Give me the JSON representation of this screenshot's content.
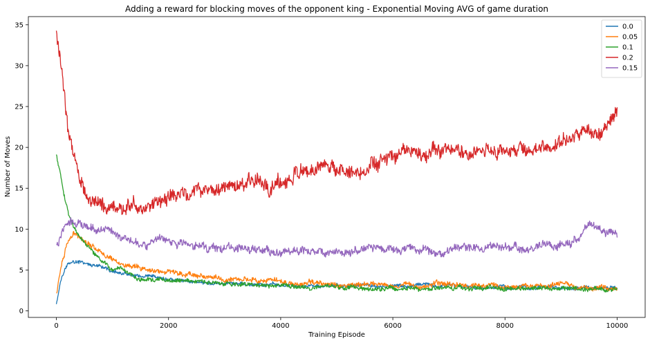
{
  "chart_data": {
    "type": "line",
    "title": "Adding a reward for blocking moves of the opponent king - Exponential Moving AVG of game duration",
    "xlabel": "Training Episode",
    "ylabel": "Number of Moves",
    "xlim": [
      -500,
      10500
    ],
    "ylim": [
      -0.8,
      36
    ],
    "xticks": [
      0,
      2000,
      4000,
      6000,
      8000,
      10000
    ],
    "yticks": [
      0,
      5,
      10,
      15,
      20,
      25,
      30,
      35
    ],
    "grid": false,
    "legend": "top-right",
    "series": [
      {
        "name": "0.0",
        "color": "#1f77b4",
        "noise": 0.25,
        "x": [
          0,
          50,
          100,
          200,
          300,
          500,
          700,
          1000,
          1500,
          2000,
          3000,
          4000,
          5000,
          6000,
          7000,
          8000,
          9000,
          10000
        ],
        "y": [
          1.0,
          2.8,
          4.5,
          5.8,
          6.0,
          5.8,
          5.4,
          4.8,
          4.0,
          3.8,
          3.3,
          3.1,
          3.0,
          3.0,
          3.0,
          2.9,
          2.8,
          2.8
        ]
      },
      {
        "name": "0.05",
        "color": "#ff7f0e",
        "noise": 0.35,
        "x": [
          0,
          50,
          100,
          200,
          300,
          400,
          600,
          800,
          1000,
          1500,
          2000,
          2500,
          3000,
          3500,
          4000,
          5000,
          6000,
          7000,
          8000,
          9000,
          10000
        ],
        "y": [
          2.0,
          4.0,
          6.0,
          8.5,
          9.3,
          9.2,
          8.3,
          7.3,
          6.3,
          4.9,
          4.7,
          4.5,
          3.8,
          3.9,
          3.5,
          3.2,
          3.2,
          3.3,
          3.0,
          3.1,
          2.8
        ]
      },
      {
        "name": "0.1",
        "color": "#2ca02c",
        "noise": 0.3,
        "x": [
          0,
          50,
          100,
          200,
          300,
          400,
          600,
          800,
          1000,
          1500,
          2000,
          2500,
          3000,
          4000,
          5000,
          6000,
          7000,
          8000,
          9000,
          10000
        ],
        "y": [
          19.0,
          17.5,
          15.5,
          12.5,
          10.5,
          9.0,
          7.5,
          6.0,
          5.0,
          4.0,
          3.6,
          3.5,
          3.2,
          3.0,
          2.9,
          2.8,
          2.8,
          2.8,
          2.7,
          2.7
        ]
      },
      {
        "name": "0.2",
        "color": "#d62728",
        "noise": 1.0,
        "x": [
          0,
          100,
          200,
          300,
          400,
          600,
          800,
          1000,
          1300,
          1600,
          2000,
          2500,
          3000,
          3500,
          4000,
          4500,
          5000,
          5500,
          6000,
          6500,
          7000,
          7500,
          8000,
          8500,
          9000,
          9500,
          10000
        ],
        "y": [
          34.0,
          29.0,
          23.0,
          19.5,
          17.0,
          14.0,
          12.5,
          12.5,
          12.8,
          12.5,
          13.8,
          14.6,
          15.2,
          15.5,
          15.8,
          16.8,
          17.0,
          17.5,
          18.5,
          18.8,
          19.5,
          19.5,
          19.5,
          19.5,
          20.5,
          21.5,
          23.5
        ]
      },
      {
        "name": "0.15",
        "color": "#9467bd",
        "noise": 0.55,
        "x": [
          0,
          100,
          200,
          300,
          500,
          800,
          1000,
          1500,
          2000,
          2500,
          3000,
          3500,
          4000,
          4500,
          5000,
          5500,
          6000,
          6500,
          7000,
          7500,
          8000,
          8500,
          9000,
          9300,
          9500,
          9800,
          10000
        ],
        "y": [
          8.0,
          9.5,
          11.0,
          10.8,
          10.5,
          10.2,
          9.7,
          8.5,
          8.3,
          8.0,
          7.7,
          7.5,
          7.0,
          7.2,
          7.3,
          7.4,
          7.5,
          7.3,
          7.5,
          7.6,
          7.8,
          7.9,
          8.2,
          8.8,
          10.5,
          10.0,
          9.5
        ]
      }
    ]
  }
}
